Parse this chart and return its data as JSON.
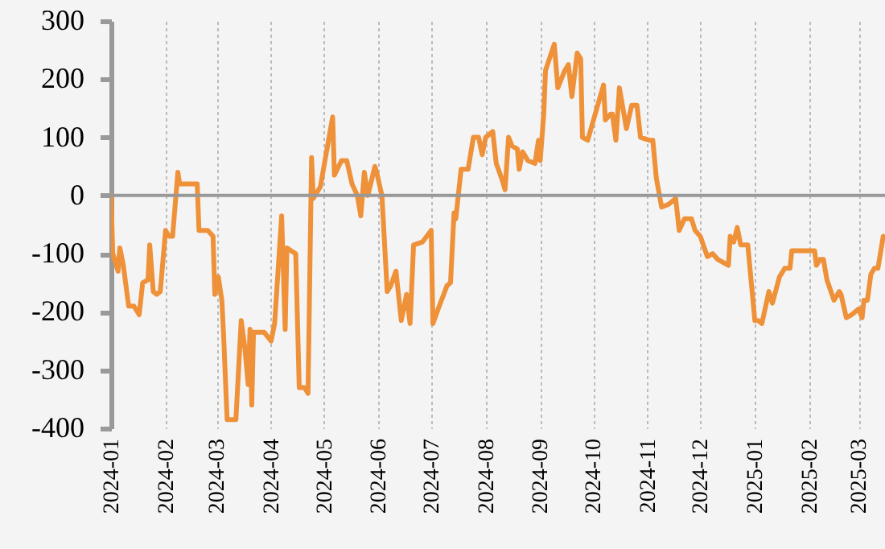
{
  "chart_data": {
    "type": "line",
    "x": [
      "2024-01-01",
      "2024-01-02",
      "2024-01-05",
      "2024-01-06",
      "2024-01-08",
      "2024-01-11",
      "2024-01-14",
      "2024-01-17",
      "2024-01-19",
      "2024-01-22",
      "2024-01-23",
      "2024-01-25",
      "2024-01-27",
      "2024-01-29",
      "2024-02-01",
      "2024-02-03",
      "2024-02-05",
      "2024-02-08",
      "2024-02-09",
      "2024-02-19",
      "2024-02-20",
      "2024-02-25",
      "2024-02-28",
      "2024-02-29",
      "2024-03-02",
      "2024-03-04",
      "2024-03-05",
      "2024-03-07",
      "2024-03-12",
      "2024-03-15",
      "2024-03-17",
      "2024-03-19",
      "2024-03-20",
      "2024-03-21",
      "2024-03-22",
      "2024-03-28",
      "2024-04-01",
      "2024-04-03",
      "2024-04-07",
      "2024-04-09",
      "2024-04-10",
      "2024-04-15",
      "2024-04-17",
      "2024-04-20",
      "2024-04-22",
      "2024-04-24",
      "2024-04-25",
      "2024-04-29",
      "2024-05-06",
      "2024-05-07",
      "2024-05-11",
      "2024-05-14",
      "2024-05-17",
      "2024-05-20",
      "2024-05-22",
      "2024-05-24",
      "2024-05-26",
      "2024-05-30",
      "2024-05-31",
      "2024-06-03",
      "2024-06-06",
      "2024-06-08",
      "2024-06-11",
      "2024-06-14",
      "2024-06-17",
      "2024-06-19",
      "2024-06-21",
      "2024-06-26",
      "2024-07-01",
      "2024-07-02",
      "2024-07-05",
      "2024-07-10",
      "2024-07-12",
      "2024-07-14",
      "2024-07-15",
      "2024-07-18",
      "2024-07-22",
      "2024-07-25",
      "2024-07-28",
      "2024-07-30",
      "2024-08-01",
      "2024-08-05",
      "2024-08-07",
      "2024-08-10",
      "2024-08-12",
      "2024-08-14",
      "2024-08-16",
      "2024-08-19",
      "2024-08-20",
      "2024-08-22",
      "2024-08-25",
      "2024-08-29",
      "2024-08-31",
      "2024-09-01",
      "2024-09-03",
      "2024-09-04",
      "2024-09-09",
      "2024-09-11",
      "2024-09-15",
      "2024-09-17",
      "2024-09-19",
      "2024-09-22",
      "2024-09-24",
      "2024-09-25",
      "2024-09-28",
      "2024-10-07",
      "2024-10-08",
      "2024-10-11",
      "2024-10-12",
      "2024-10-14",
      "2024-10-16",
      "2024-10-20",
      "2024-10-23",
      "2024-10-26",
      "2024-10-28",
      "2024-11-02",
      "2024-11-04",
      "2024-11-06",
      "2024-11-09",
      "2024-11-13",
      "2024-11-17",
      "2024-11-19",
      "2024-11-22",
      "2024-11-26",
      "2024-11-28",
      "2024-12-01",
      "2024-12-05",
      "2024-12-08",
      "2024-12-11",
      "2024-12-17",
      "2024-12-18",
      "2024-12-20",
      "2024-12-22",
      "2024-12-24",
      "2024-12-28",
      "2025-01-01",
      "2025-01-03",
      "2025-01-05",
      "2025-01-09",
      "2025-01-11",
      "2025-01-15",
      "2025-01-18",
      "2025-01-21",
      "2025-01-22",
      "2025-01-31",
      "2025-02-04",
      "2025-02-05",
      "2025-02-07",
      "2025-02-09",
      "2025-02-11",
      "2025-02-15",
      "2025-02-18",
      "2025-02-19",
      "2025-02-22",
      "2025-02-25",
      "2025-03-01",
      "2025-03-03",
      "2025-03-04",
      "2025-03-06",
      "2025-03-08",
      "2025-03-10",
      "2025-03-12",
      "2025-03-15"
    ],
    "series": [
      {
        "color": "#ee9139",
        "values": [
          0,
          -100,
          -130,
          -90,
          -120,
          -190,
          -190,
          -205,
          -150,
          -145,
          -85,
          -165,
          -170,
          -165,
          -60,
          -70,
          -70,
          40,
          20,
          20,
          -60,
          -60,
          -70,
          -170,
          -140,
          -180,
          -240,
          -385,
          -385,
          -215,
          -260,
          -325,
          -230,
          -360,
          -235,
          -235,
          -250,
          -220,
          -35,
          -230,
          -90,
          -100,
          -330,
          -330,
          -340,
          65,
          -5,
          15,
          135,
          35,
          60,
          60,
          20,
          0,
          -35,
          40,
          0,
          50,
          40,
          0,
          -165,
          -155,
          -130,
          -215,
          -170,
          -220,
          -85,
          -80,
          -60,
          -220,
          -195,
          -155,
          -150,
          -30,
          -40,
          45,
          45,
          100,
          100,
          70,
          100,
          110,
          55,
          30,
          10,
          100,
          85,
          80,
          45,
          75,
          60,
          55,
          95,
          60,
          140,
          215,
          260,
          185,
          215,
          225,
          170,
          245,
          235,
          100,
          95,
          190,
          130,
          140,
          140,
          95,
          185,
          115,
          155,
          155,
          100,
          95,
          95,
          30,
          -20,
          -15,
          -5,
          -60,
          -40,
          -40,
          -60,
          -70,
          -105,
          -100,
          -110,
          -120,
          -70,
          -80,
          -55,
          -85,
          -85,
          -215,
          -215,
          -220,
          -165,
          -185,
          -140,
          -125,
          -125,
          -95,
          -95,
          -95,
          -120,
          -110,
          -110,
          -145,
          -180,
          -165,
          -170,
          -210,
          -205,
          -195,
          -210,
          -180,
          -180,
          -135,
          -125,
          -125,
          -70
        ]
      }
    ],
    "xlim": [
      "2024-01-01",
      "2025-03-16"
    ],
    "xticks": [
      "2024-01",
      "2024-02",
      "2024-03",
      "2024-04",
      "2024-05",
      "2024-06",
      "2024-07",
      "2024-08",
      "2024-09",
      "2024-10",
      "2024-11",
      "2024-12",
      "2025-01",
      "2025-02",
      "2025-03"
    ],
    "ylim": [
      -400,
      300
    ],
    "yticks": [
      -400,
      -300,
      -200,
      -100,
      0,
      100,
      200,
      300
    ],
    "grid": "x",
    "marker": "none",
    "line_style": "solid",
    "ref_lines": [
      {
        "axis": "y",
        "value": 0,
        "color": "#999999"
      }
    ]
  }
}
